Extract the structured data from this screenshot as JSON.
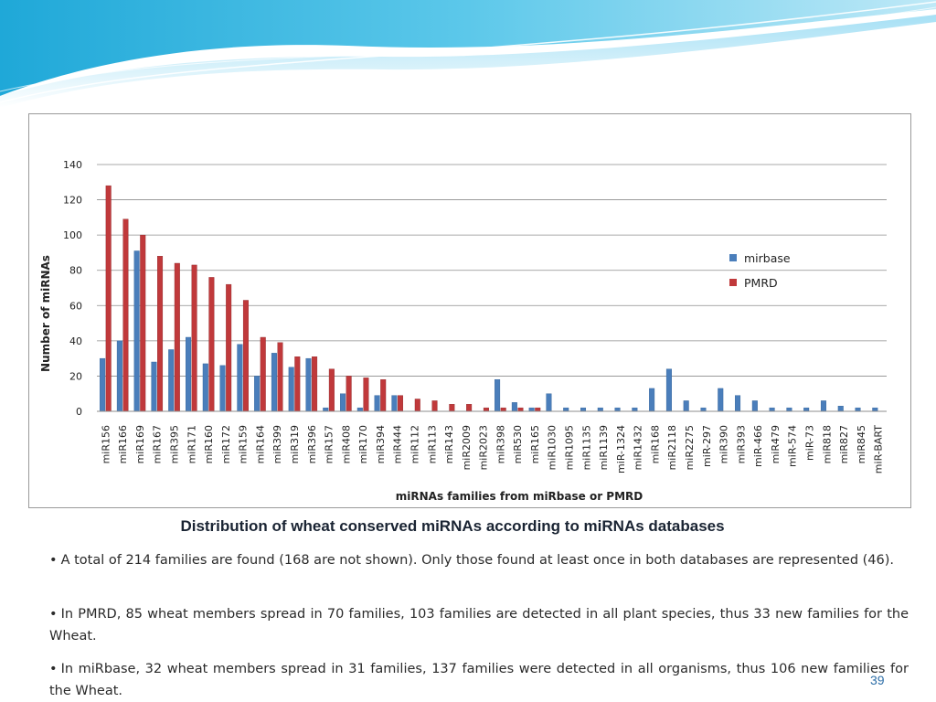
{
  "chart_data": {
    "type": "bar",
    "xlabel": "miRNAs families from miRbase or PMRD",
    "ylabel": "Number of miRNAs",
    "ylim": [
      0,
      140
    ],
    "yticks": [
      0,
      20,
      40,
      60,
      80,
      100,
      120,
      140
    ],
    "grid": true,
    "legend_position": "right",
    "categories": [
      "miR156",
      "miR166",
      "miR169",
      "miR167",
      "miR395",
      "miR171",
      "miR160",
      "miR172",
      "miR159",
      "miR164",
      "miR399",
      "miR319",
      "miR396",
      "miR157",
      "miR408",
      "miR170",
      "miR394",
      "miR444",
      "miR112",
      "miR113",
      "miR143",
      "miR2009",
      "miR2023",
      "miR398",
      "miR530",
      "miR165",
      "miR1030",
      "miR1095",
      "miR1135",
      "miR1139",
      "miR-1324",
      "miR1432",
      "miR168",
      "miR2118",
      "miR2275",
      "miR-297",
      "miR390",
      "miR393",
      "miR-466",
      "miR479",
      "miR-574",
      "miR-73",
      "miR818",
      "miR827",
      "miR845",
      "miR-BART"
    ],
    "series": [
      {
        "name": "mirbase",
        "color": "#4a7ebb",
        "values": [
          30,
          40,
          91,
          28,
          35,
          42,
          27,
          26,
          38,
          20,
          33,
          25,
          30,
          2,
          10,
          2,
          9,
          9,
          0,
          0,
          0,
          0,
          0,
          18,
          5,
          2,
          10,
          2,
          2,
          2,
          2,
          2,
          13,
          24,
          6,
          2,
          13,
          9,
          6,
          2,
          2,
          2,
          6,
          3,
          2,
          2
        ]
      },
      {
        "name": "PMRD",
        "color": "#c0393b",
        "values": [
          128,
          109,
          100,
          88,
          84,
          83,
          76,
          72,
          63,
          42,
          39,
          31,
          31,
          24,
          20,
          19,
          18,
          9,
          7,
          6,
          4,
          4,
          2,
          2,
          2,
          2,
          0,
          0,
          0,
          0,
          0,
          0,
          0,
          0,
          0,
          0,
          0,
          0,
          0,
          0,
          0,
          0,
          0,
          0,
          0,
          0
        ]
      }
    ]
  },
  "caption": "Distribution of wheat conserved miRNAs according to miRNAs databases",
  "bullets": [
    "A total of 214 families are found (168 are not shown). Only those found at least once in both databases are represented (46).",
    "In PMRD, 85 wheat members spread in 70 families, 103 families are detected in all plant species, thus 33 new families for the Wheat.",
    "In miRbase, 32 wheat members spread in 31 families, 137 families were detected in all organisms, thus 106 new families for the Wheat."
  ],
  "bullet_symbol": "•",
  "page_number": "39"
}
